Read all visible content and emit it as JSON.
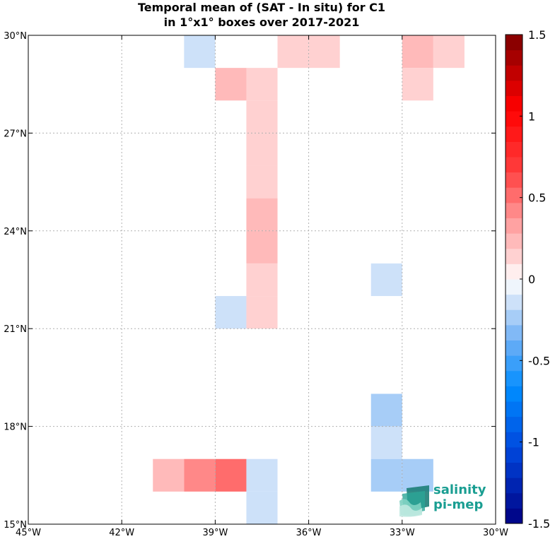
{
  "chart_data": {
    "type": "heatmap",
    "title_line1": "Temporal mean of (SAT - In situ) for C1",
    "title_line2": "in 1°x1° boxes over 2017-2021",
    "x_range": [
      -45,
      -30
    ],
    "y_range": [
      15,
      30
    ],
    "x_ticks": [
      -45,
      -42,
      -39,
      -36,
      -33,
      -30
    ],
    "x_tick_labels": [
      "45°W",
      "42°W",
      "39°W",
      "36°W",
      "33°W",
      "30°W"
    ],
    "y_ticks": [
      15,
      18,
      21,
      24,
      27,
      30
    ],
    "y_tick_labels": [
      "15°N",
      "18°N",
      "21°N",
      "24°N",
      "27°N",
      "30°N"
    ],
    "grid": true,
    "colorbar": {
      "range": [
        -1.5,
        1.5
      ],
      "ticks": [
        -1.5,
        -1,
        -0.5,
        0,
        0.5,
        1,
        1.5
      ],
      "tick_labels": [
        "-1.5",
        "-1",
        "-0.5",
        "0",
        "0.5",
        "1",
        "1.5"
      ],
      "levels": 32,
      "colormap": "blue-white-red"
    },
    "cells": [
      {
        "lon": -40,
        "lat": 29,
        "value": -0.14
      },
      {
        "lon": -37,
        "lat": 29,
        "value": 0.14
      },
      {
        "lon": -36,
        "lat": 29,
        "value": 0.14
      },
      {
        "lon": -33,
        "lat": 29,
        "value": 0.28
      },
      {
        "lon": -32,
        "lat": 29,
        "value": 0.14
      },
      {
        "lon": -39,
        "lat": 28,
        "value": 0.28
      },
      {
        "lon": -38,
        "lat": 28,
        "value": 0.14
      },
      {
        "lon": -33,
        "lat": 28,
        "value": 0.14
      },
      {
        "lon": -38,
        "lat": 27,
        "value": 0.14
      },
      {
        "lon": -38,
        "lat": 26,
        "value": 0.14
      },
      {
        "lon": -38,
        "lat": 25,
        "value": 0.14
      },
      {
        "lon": -38,
        "lat": 24,
        "value": 0.28
      },
      {
        "lon": -38,
        "lat": 23,
        "value": 0.28
      },
      {
        "lon": -38,
        "lat": 22,
        "value": 0.14
      },
      {
        "lon": -34,
        "lat": 22,
        "value": -0.14
      },
      {
        "lon": -39,
        "lat": 21,
        "value": -0.14
      },
      {
        "lon": -38,
        "lat": 21,
        "value": 0.14
      },
      {
        "lon": -34,
        "lat": 18,
        "value": -0.28
      },
      {
        "lon": -34,
        "lat": 17,
        "value": -0.14
      },
      {
        "lon": -41,
        "lat": 16,
        "value": 0.28
      },
      {
        "lon": -40,
        "lat": 16,
        "value": 0.38
      },
      {
        "lon": -39,
        "lat": 16,
        "value": 0.48
      },
      {
        "lon": -38,
        "lat": 16,
        "value": -0.14
      },
      {
        "lon": -34,
        "lat": 16,
        "value": -0.28
      },
      {
        "lon": -33,
        "lat": 16,
        "value": -0.28
      },
      {
        "lon": -38,
        "lat": 15,
        "value": -0.14
      }
    ]
  },
  "logo": {
    "line1": "salinity",
    "line2": "pi-mep",
    "color": "#1a9e92"
  }
}
